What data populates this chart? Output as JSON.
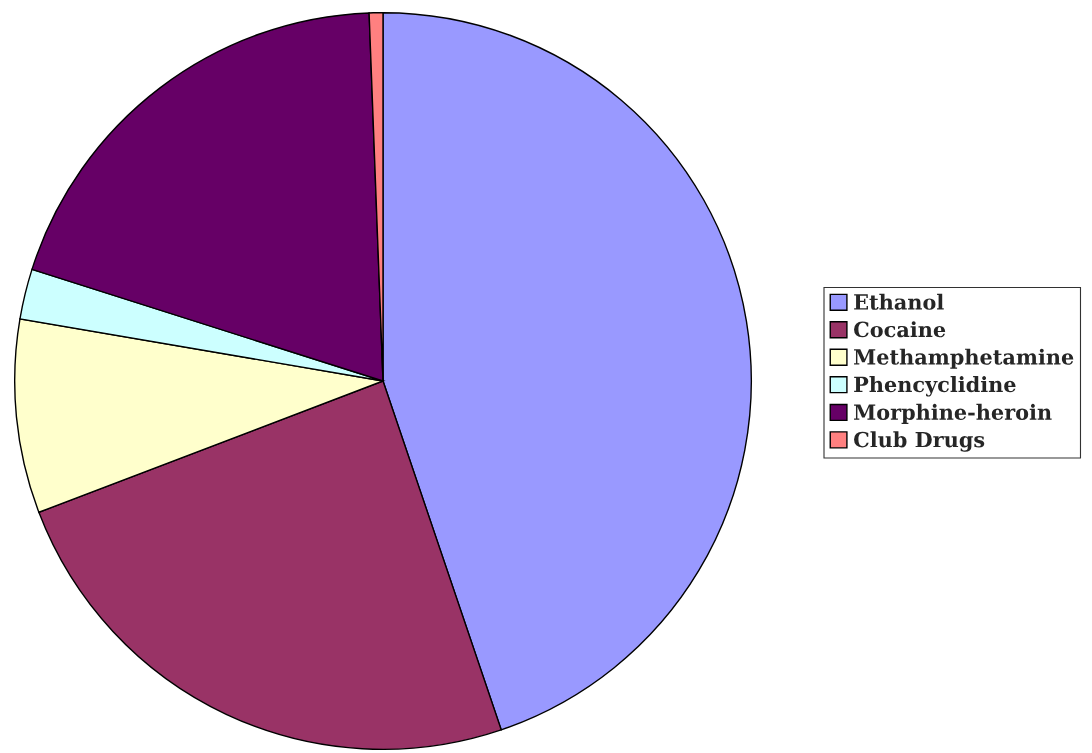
{
  "chart_data": {
    "type": "pie",
    "categories": [
      "Ethanol",
      "Cocaine",
      "Methamphetamine",
      "Phencyclidine",
      "Morphine-heroin",
      "Club Drugs"
    ],
    "values": [
      44.8,
      24.4,
      8.5,
      2.2,
      19.5,
      0.6
    ],
    "colors": [
      "#9999ff",
      "#993366",
      "#ffffcc",
      "#ccffff",
      "#660066",
      "#ff8080"
    ],
    "legend": "right"
  }
}
